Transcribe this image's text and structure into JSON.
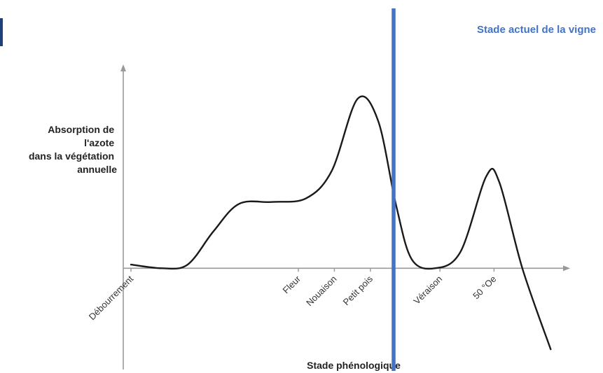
{
  "chart_data": {
    "type": "line",
    "xlabel": "Stade phénologique",
    "ylabel_lines": [
      "Absorption de",
      "l'azote",
      "dans la végétation",
      "annuelle"
    ],
    "stages": [
      {
        "label": "Débourrement",
        "x": 0
      },
      {
        "label": "Fleur",
        "x": 0.65
      },
      {
        "label": "Nouaison",
        "x": 0.79
      },
      {
        "label": "Petit pois",
        "x": 0.93
      },
      {
        "label": "Véraison",
        "x": 1.2
      },
      {
        "label": "50 °Oe",
        "x": 1.41
      }
    ],
    "series": [
      {
        "points": [
          [
            0,
            0.02
          ],
          [
            0.12,
            0.0
          ],
          [
            0.22,
            0.02
          ],
          [
            0.32,
            0.2
          ],
          [
            0.42,
            0.35
          ],
          [
            0.55,
            0.36
          ],
          [
            0.68,
            0.38
          ],
          [
            0.78,
            0.53
          ],
          [
            0.88,
            0.92
          ],
          [
            0.96,
            0.8
          ],
          [
            1.03,
            0.34
          ],
          [
            1.09,
            0.05
          ],
          [
            1.18,
            0.0
          ],
          [
            1.28,
            0.09
          ],
          [
            1.38,
            0.5
          ],
          [
            1.43,
            0.47
          ],
          [
            1.52,
            0.0
          ],
          [
            1.63,
            -0.44
          ]
        ]
      }
    ],
    "xlim": [
      -0.03,
      1.7
    ],
    "ylim": [
      -0.55,
      1.1
    ],
    "annotation": {
      "label": "Stade actuel de la vigne",
      "x": 1.02
    },
    "colors": {
      "curve": "#1a1a1a",
      "marker": "#4472c4",
      "axis": "#999999"
    }
  }
}
